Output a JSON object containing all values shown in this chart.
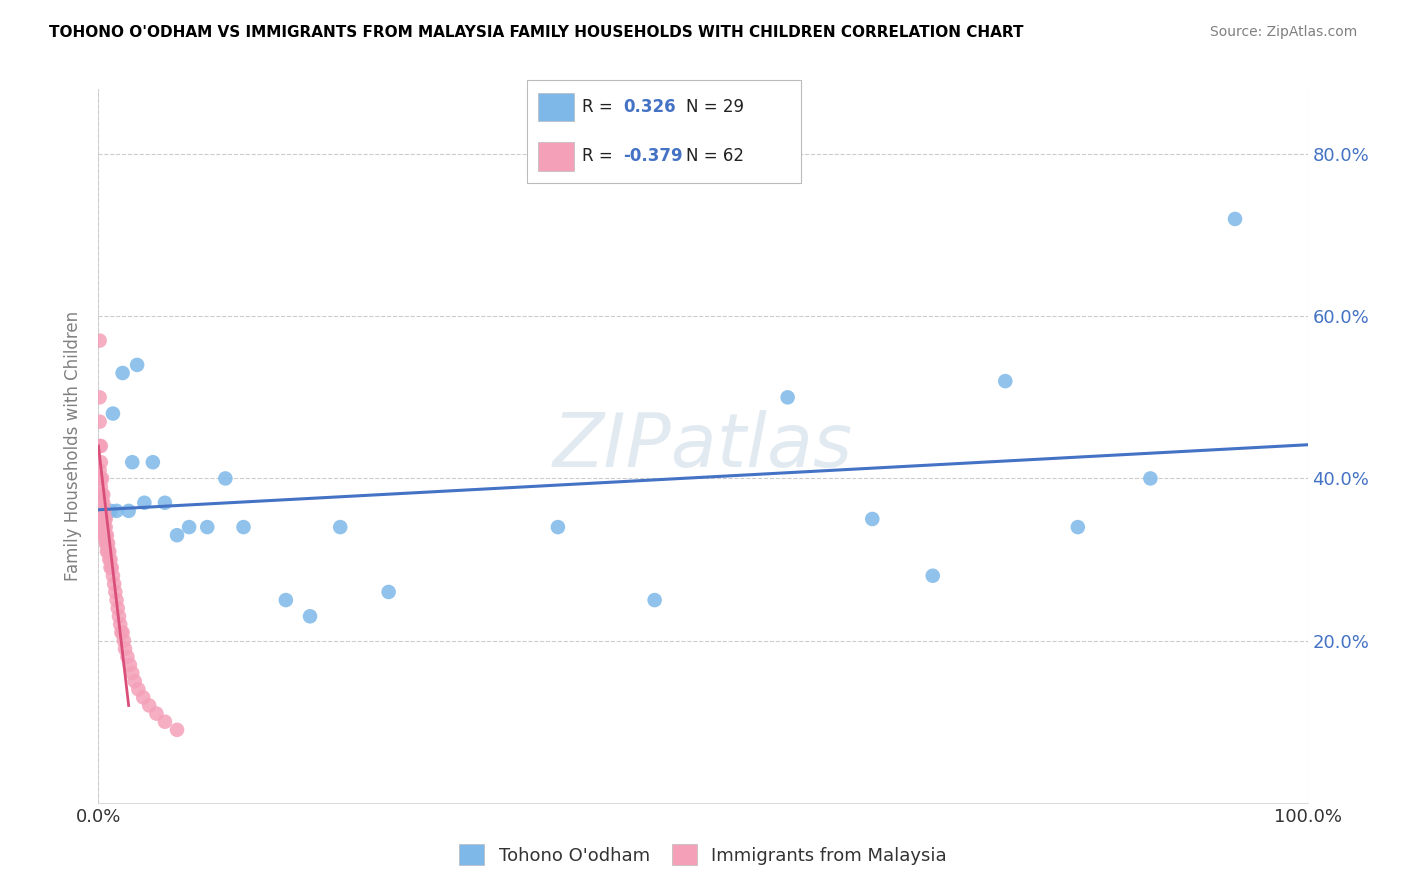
{
  "title": "TOHONO O'ODHAM VS IMMIGRANTS FROM MALAYSIA FAMILY HOUSEHOLDS WITH CHILDREN CORRELATION CHART",
  "source": "Source: ZipAtlas.com",
  "ylabel": "Family Households with Children",
  "watermark": "ZIPatlas",
  "blue_color": "#7eb8e8",
  "pink_color": "#f4a0b8",
  "blue_line_color": "#4472c4",
  "pink_line_color": "#d94f7a",
  "ytick_vals": [
    0.0,
    0.2,
    0.4,
    0.6,
    0.8
  ],
  "ytick_labels": [
    "",
    "20.0%",
    "40.0%",
    "60.0%",
    "80.0%"
  ],
  "xmin": 0.0,
  "xmax": 1.0,
  "ymin": 0.0,
  "ymax": 0.88,
  "blue_points_x": [
    0.005,
    0.01,
    0.012,
    0.015,
    0.02,
    0.025,
    0.028,
    0.032,
    0.038,
    0.045,
    0.055,
    0.065,
    0.075,
    0.09,
    0.105,
    0.12,
    0.155,
    0.175,
    0.2,
    0.24,
    0.38,
    0.46,
    0.57,
    0.64,
    0.69,
    0.75,
    0.81,
    0.87,
    0.94
  ],
  "blue_points_y": [
    0.35,
    0.36,
    0.48,
    0.36,
    0.53,
    0.36,
    0.42,
    0.54,
    0.37,
    0.42,
    0.37,
    0.33,
    0.34,
    0.34,
    0.4,
    0.34,
    0.25,
    0.23,
    0.34,
    0.26,
    0.34,
    0.25,
    0.5,
    0.35,
    0.28,
    0.52,
    0.34,
    0.4,
    0.72
  ],
  "pink_points_x": [
    0.001,
    0.001,
    0.001,
    0.001,
    0.001,
    0.002,
    0.002,
    0.002,
    0.002,
    0.002,
    0.002,
    0.002,
    0.003,
    0.003,
    0.003,
    0.003,
    0.003,
    0.003,
    0.004,
    0.004,
    0.004,
    0.004,
    0.004,
    0.005,
    0.005,
    0.005,
    0.005,
    0.006,
    0.006,
    0.006,
    0.006,
    0.007,
    0.007,
    0.007,
    0.008,
    0.008,
    0.009,
    0.009,
    0.01,
    0.01,
    0.011,
    0.012,
    0.013,
    0.014,
    0.015,
    0.016,
    0.017,
    0.018,
    0.019,
    0.02,
    0.021,
    0.022,
    0.024,
    0.026,
    0.028,
    0.03,
    0.033,
    0.037,
    0.042,
    0.048,
    0.055,
    0.065
  ],
  "pink_points_y": [
    0.57,
    0.5,
    0.47,
    0.44,
    0.41,
    0.44,
    0.42,
    0.4,
    0.39,
    0.38,
    0.36,
    0.35,
    0.4,
    0.38,
    0.37,
    0.36,
    0.35,
    0.34,
    0.38,
    0.37,
    0.35,
    0.34,
    0.33,
    0.36,
    0.35,
    0.34,
    0.33,
    0.35,
    0.34,
    0.33,
    0.32,
    0.33,
    0.32,
    0.31,
    0.32,
    0.31,
    0.31,
    0.3,
    0.3,
    0.29,
    0.29,
    0.28,
    0.27,
    0.26,
    0.25,
    0.24,
    0.23,
    0.22,
    0.21,
    0.21,
    0.2,
    0.19,
    0.18,
    0.17,
    0.16,
    0.15,
    0.14,
    0.13,
    0.12,
    0.11,
    0.1,
    0.09
  ],
  "pink_line_x": [
    0.0,
    0.025
  ],
  "pink_line_y": [
    0.44,
    0.12
  ]
}
